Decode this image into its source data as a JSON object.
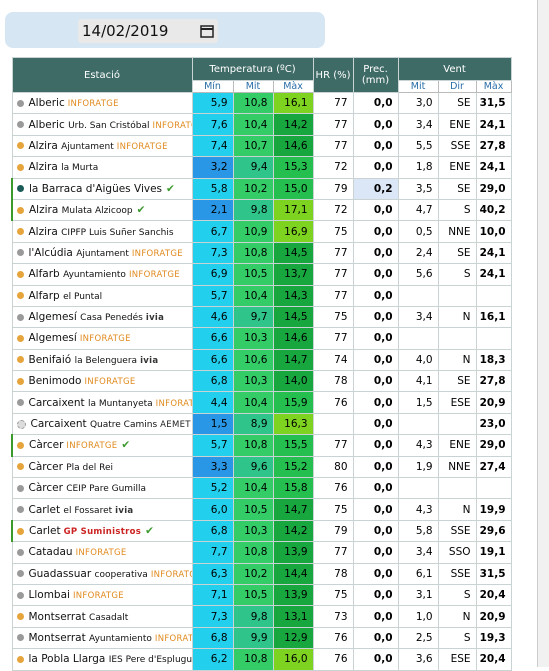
{
  "date": "14/02/2019",
  "table": {
    "header": {
      "station": "Estació",
      "temp": "Temperatura (ºC)",
      "hr": "HR (%)",
      "prec": "Prec. (mm)",
      "wind": "Vent"
    },
    "subheader": {
      "tmin": "Mín",
      "tmit": "Mit",
      "tmax": "Màx",
      "wmit": "Mit",
      "wdir": "Dir",
      "wmax": "Màx"
    },
    "rows": [
      {
        "name": "Alberic",
        "tag": "INFORATGE",
        "dot": "#9a9a9a",
        "min": "5,9",
        "mit": "10,8",
        "max": "16,1",
        "hr": "77",
        "prec": "0,0",
        "wind": "3,0",
        "dir": "SE",
        "gust": "31,5"
      },
      {
        "name": "Alberic",
        "sub": "Urb. San Cristóbal",
        "tag": "INFORATGE",
        "dot": "#9a9a9a",
        "min": "7,6",
        "mit": "10,4",
        "max": "14,2",
        "hr": "77",
        "prec": "0,0",
        "wind": "3,4",
        "dir": "ENE",
        "gust": "24,1"
      },
      {
        "name": "Alzira",
        "sub": "Ajuntament",
        "tag": "INFORATGE",
        "dot": "#e6a53c",
        "min": "7,4",
        "mit": "10,7",
        "max": "14,6",
        "hr": "77",
        "prec": "0,0",
        "wind": "5,5",
        "dir": "SSE",
        "gust": "27,8"
      },
      {
        "name": "Alzira",
        "sub": "la Murta",
        "dot": "#e6a53c",
        "min": "3,2",
        "mit": "9,4",
        "max": "15,3",
        "hr": "72",
        "prec": "0,0",
        "wind": "1,8",
        "dir": "ENE",
        "gust": "24,1"
      },
      {
        "name": "la Barraca d'Aigües Vives",
        "dot": "#1c5c58",
        "check": true,
        "min": "5,8",
        "mit": "10,2",
        "max": "15,0",
        "hr": "79",
        "prec": "0,2",
        "wind": "3,5",
        "dir": "SE",
        "gust": "29,0"
      },
      {
        "name": "Alzira",
        "sub": "Mulata Alzicoop",
        "dot": "#e6a53c",
        "check": true,
        "min": "2,1",
        "mit": "9,8",
        "max": "17,1",
        "hr": "72",
        "prec": "0,0",
        "wind": "4,7",
        "dir": "S",
        "gust": "40,2"
      },
      {
        "name": "Alzira",
        "sub": "CIPFP Luis Suñer Sanchis",
        "dot": "#e6a53c",
        "min": "6,7",
        "mit": "10,9",
        "max": "16,9",
        "hr": "75",
        "prec": "0,0",
        "wind": "0,5",
        "dir": "NNE",
        "gust": "10,0"
      },
      {
        "name": "l'Alcúdia",
        "sub": "Ajuntament",
        "tag": "INFORATGE",
        "dot": "#9a9a9a",
        "min": "7,3",
        "mit": "10,8",
        "max": "14,5",
        "hr": "77",
        "prec": "0,0",
        "wind": "2,4",
        "dir": "SE",
        "gust": "24,1"
      },
      {
        "name": "Alfarb",
        "sub": "Ayuntamiento",
        "tag": "INFORATGE",
        "dot": "#e6a53c",
        "min": "6,9",
        "mit": "10,5",
        "max": "13,7",
        "hr": "77",
        "prec": "0,0",
        "wind": "5,6",
        "dir": "S",
        "gust": "24,1"
      },
      {
        "name": "Alfarp",
        "sub": "el Puntal",
        "dot": "#e6a53c",
        "min": "5,7",
        "mit": "10,4",
        "max": "14,3",
        "hr": "77",
        "prec": "0,0"
      },
      {
        "name": "Algemesí",
        "sub": "Casa Penedés",
        "tag": "ivia",
        "dot": "#9a9a9a",
        "min": "4,6",
        "mit": "9,7",
        "max": "14,5",
        "hr": "75",
        "prec": "0,0",
        "wind": "3,4",
        "dir": "N",
        "gust": "16,1"
      },
      {
        "name": "Algemesí",
        "tag": "INFORATGE",
        "dot": "#e6a53c",
        "min": "6,6",
        "mit": "10,3",
        "max": "14,6",
        "hr": "77",
        "prec": "0,0"
      },
      {
        "name": "Benifaió",
        "sub": "la Belenguera",
        "tag": "ivia",
        "dot": "#e6a53c",
        "min": "6,6",
        "mit": "10,6",
        "max": "14,7",
        "hr": "74",
        "prec": "0,0",
        "wind": "4,0",
        "dir": "N",
        "gust": "18,3"
      },
      {
        "name": "Benimodo",
        "tag": "INFORATGE",
        "dot": "#e6a53c",
        "min": "6,8",
        "mit": "10,3",
        "max": "14,0",
        "hr": "78",
        "prec": "0,0",
        "wind": "4,1",
        "dir": "SE",
        "gust": "27,8"
      },
      {
        "name": "Carcaixent",
        "sub": "la Muntanyeta",
        "tag": "INFORATGE",
        "dot": "#9a9a9a",
        "min": "4,4",
        "mit": "10,4",
        "max": "15,9",
        "hr": "76",
        "prec": "0,0",
        "wind": "1,5",
        "dir": "ESE",
        "gust": "20,9"
      },
      {
        "name": "Carcaixent",
        "sub": "Quatre Camins",
        "tag": "AEMET",
        "dot": "#dcdcdc",
        "min": "1,5",
        "mit": "8,9",
        "max": "16,3",
        "prec": "0,0",
        "gust": "23,0"
      },
      {
        "name": "Càrcer",
        "tag": "INFORATGE",
        "dot": "#e6a53c",
        "check": true,
        "min": "5,7",
        "mit": "10,8",
        "max": "15,5",
        "hr": "77",
        "prec": "0,0",
        "wind": "4,3",
        "dir": "ENE",
        "gust": "29,0"
      },
      {
        "name": "Càrcer",
        "sub": "Pla del Rei",
        "dot": "#e6a53c",
        "min": "3,3",
        "mit": "9,6",
        "max": "15,2",
        "hr": "80",
        "prec": "0,0",
        "wind": "1,9",
        "dir": "NNE",
        "gust": "27,4"
      },
      {
        "name": "Càrcer",
        "sub": "CEIP Pare Gumilla",
        "dot": "#9a9a9a",
        "min": "5,2",
        "mit": "10,4",
        "max": "15,8",
        "hr": "76",
        "prec": "0,0"
      },
      {
        "name": "Carlet",
        "sub": "el Fossaret",
        "tag": "ivia",
        "dot": "#9a9a9a",
        "min": "6,0",
        "mit": "10,5",
        "max": "14,7",
        "hr": "75",
        "prec": "0,0",
        "wind": "4,3",
        "dir": "N",
        "gust": "19,9"
      },
      {
        "name": "Carlet",
        "tag": "GP Suministros",
        "dot": "#e6a53c",
        "check": true,
        "min": "6,8",
        "mit": "10,3",
        "max": "14,2",
        "hr": "79",
        "prec": "0,0",
        "wind": "5,8",
        "dir": "SSE",
        "gust": "29,6"
      },
      {
        "name": "Catadau",
        "tag": "INFORATGE",
        "dot": "#9a9a9a",
        "min": "7,7",
        "mit": "10,8",
        "max": "13,9",
        "hr": "77",
        "prec": "0,0",
        "wind": "3,4",
        "dir": "SSO",
        "gust": "19,1"
      },
      {
        "name": "Guadassuar",
        "sub": "cooperativa",
        "tag": "INFORATGE",
        "dot": "#9a9a9a",
        "min": "6,3",
        "mit": "10,2",
        "max": "14,4",
        "hr": "78",
        "prec": "0,0",
        "wind": "6,1",
        "dir": "SSE",
        "gust": "31,5"
      },
      {
        "name": "Llombai",
        "tag": "INFORATGE",
        "dot": "#9a9a9a",
        "min": "7,1",
        "mit": "10,5",
        "max": "13,9",
        "hr": "75",
        "prec": "0,0",
        "wind": "3,1",
        "dir": "S",
        "gust": "20,4"
      },
      {
        "name": "Montserrat",
        "sub": "Casadalt",
        "dot": "#e6a53c",
        "min": "7,3",
        "mit": "9,8",
        "max": "13,1",
        "hr": "73",
        "prec": "0,0",
        "wind": "1,0",
        "dir": "N",
        "gust": "20,9"
      },
      {
        "name": "Montserrat",
        "sub": "Ayuntamiento",
        "tag": "INFORATGE",
        "dot": "#9a9a9a",
        "min": "6,8",
        "mit": "9,9",
        "max": "12,9",
        "hr": "76",
        "prec": "0,0",
        "wind": "2,5",
        "dir": "S",
        "gust": "19,3"
      },
      {
        "name": "la Pobla Llarga",
        "sub": "IES Pere d'Esplugues",
        "dot": "#e6a53c",
        "min": "6,2",
        "mit": "10,8",
        "max": "16,0",
        "hr": "76",
        "prec": "0,0",
        "wind": "3,6",
        "dir": "ESE",
        "gust": "20,4"
      }
    ]
  }
}
